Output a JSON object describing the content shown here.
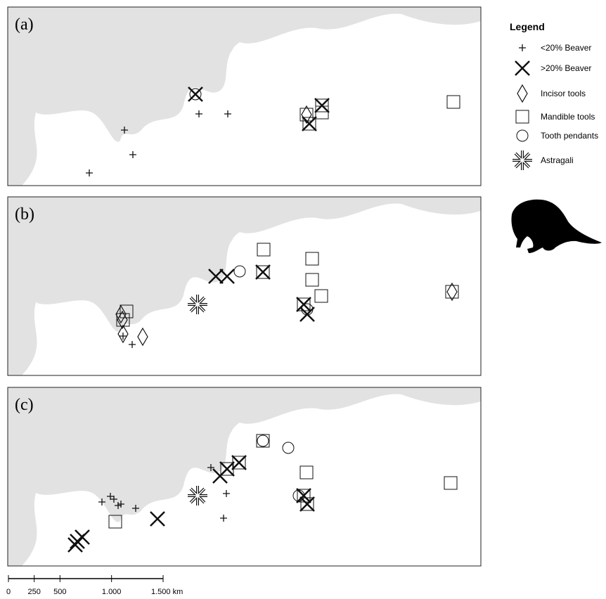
{
  "panels": [
    {
      "label": "(a)"
    },
    {
      "label": "(b)"
    },
    {
      "label": "(c)"
    }
  ],
  "legend": {
    "title": "Legend",
    "items": [
      "<20% Beaver",
      ">20% Beaver",
      "Incisor tools",
      "Mandible tools",
      "Tooth pendants",
      "Astragali"
    ]
  },
  "scale_bar": {
    "ticks": [
      {
        "value": 0,
        "label": "0"
      },
      {
        "value": 250,
        "label": "250"
      },
      {
        "value": 500,
        "label": "500"
      },
      {
        "value": 1000,
        "label": "1.000"
      },
      {
        "value": 1500,
        "label": "1.500 km"
      }
    ]
  }
}
